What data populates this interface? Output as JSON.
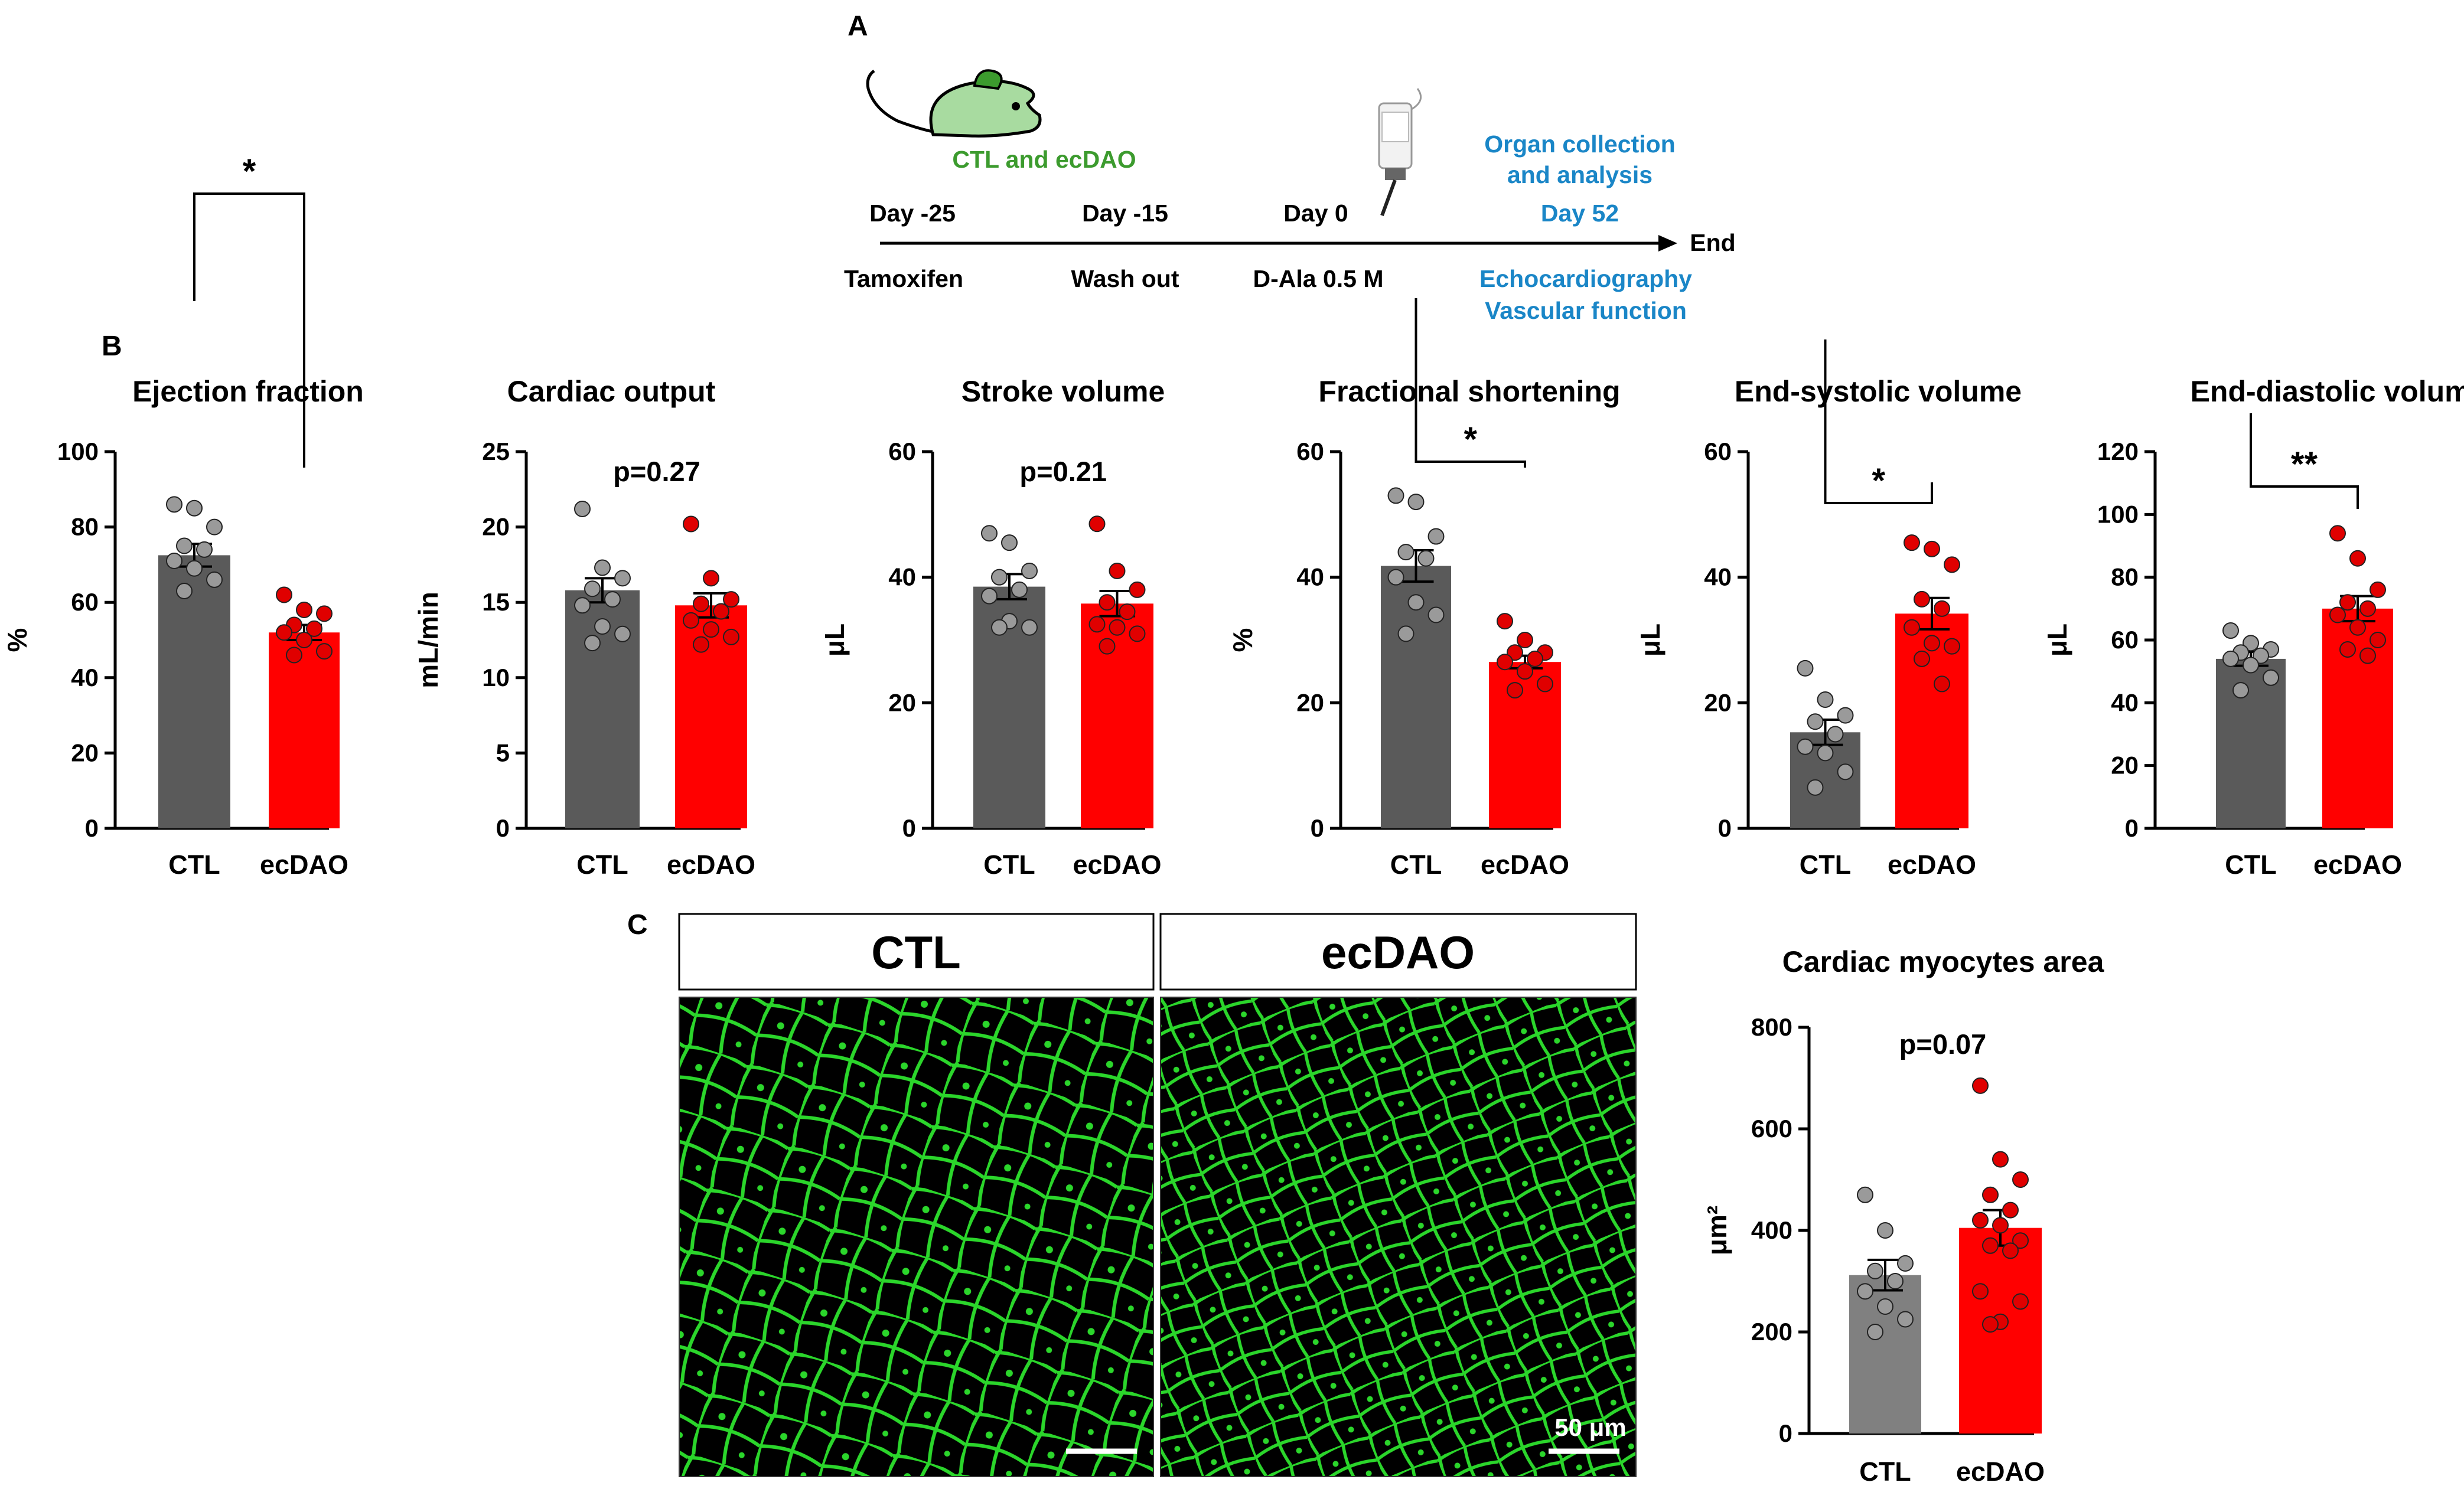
{
  "panel_a": {
    "label": "A",
    "mouse_label": "CTL and ecDAO",
    "events_top": [
      "Day -25",
      "Day -15",
      "Day 0"
    ],
    "events_bottom": [
      "Tamoxifen",
      "Wash out",
      "D-Ala 0.5 M"
    ],
    "end_label": "End",
    "organ_lines": [
      "Organ collection",
      "and analysis"
    ],
    "day52": "Day 52",
    "echo_lines": [
      "Echocardiography",
      "Vascular function"
    ],
    "colors": {
      "blue_text": "#1a86c7",
      "green_text": "#3c9b2e",
      "mouse_fill": "#a8dba0",
      "mouse_ear": "#3c9b2e"
    }
  },
  "panel_b": {
    "label": "B"
  },
  "panel_c": {
    "label": "C",
    "image_titles": [
      "CTL",
      "ecDAO"
    ],
    "scale_bar_label": "50 μm",
    "stain_color": "#2bd62b"
  },
  "colors": {
    "ctl_bar": "#5a5a5a",
    "ecdao_bar": "#ff0000",
    "ctl_bar_c": "#808080",
    "ctl_dot": "#9a9a9a",
    "ecdao_dot": "#e00000"
  },
  "chart_data": [
    {
      "type": "bar",
      "title": "Ejection fraction",
      "ylabel": "%",
      "ylim": [
        0,
        100
      ],
      "yticks": [
        0,
        20,
        40,
        60,
        80,
        100
      ],
      "categories": [
        "CTL",
        "ecDAO"
      ],
      "values": [
        72.5,
        52
      ],
      "sem": [
        3,
        2
      ],
      "points": [
        [
          86,
          85,
          80,
          75,
          74,
          71,
          69,
          66,
          63
        ],
        [
          62,
          58,
          57,
          54,
          53,
          52,
          50,
          47,
          46
        ]
      ],
      "annotation": "*"
    },
    {
      "type": "bar",
      "title": "Cardiac output",
      "ylabel": "mL/min",
      "ylim": [
        0,
        25
      ],
      "yticks": [
        0,
        5,
        10,
        15,
        20,
        25
      ],
      "categories": [
        "CTL",
        "ecDAO"
      ],
      "values": [
        15.8,
        14.8
      ],
      "sem": [
        0.8,
        0.8
      ],
      "points": [
        [
          21.2,
          17.3,
          16.6,
          15.9,
          15.2,
          14.8,
          13.4,
          12.9,
          12.3
        ],
        [
          20.2,
          16.6,
          15.2,
          14.9,
          14.4,
          13.8,
          13.2,
          12.7,
          12.2
        ]
      ],
      "annotation": "p=0.27"
    },
    {
      "type": "bar",
      "title": "Stroke volume",
      "ylabel": "μL",
      "ylim": [
        0,
        60
      ],
      "yticks": [
        0,
        20,
        40,
        60
      ],
      "categories": [
        "CTL",
        "ecDAO"
      ],
      "values": [
        38.5,
        35.8
      ],
      "sem": [
        2,
        2
      ],
      "points": [
        [
          47,
          45.5,
          41,
          40,
          38,
          37,
          33,
          32,
          32
        ],
        [
          48.5,
          41,
          38,
          36,
          34.5,
          32.5,
          32,
          31,
          29
        ]
      ],
      "annotation": "p=0.21"
    },
    {
      "type": "bar",
      "title": "Fractional shortening",
      "ylabel": "%",
      "ylim": [
        0,
        60
      ],
      "yticks": [
        0,
        20,
        40,
        60
      ],
      "categories": [
        "CTL",
        "ecDAO"
      ],
      "values": [
        41.8,
        26.5
      ],
      "sem": [
        2.5,
        1
      ],
      "points": [
        [
          53,
          52,
          46.5,
          44,
          43,
          40,
          36,
          34,
          31
        ],
        [
          33,
          30,
          28,
          28,
          27,
          26.5,
          25,
          23,
          22
        ]
      ],
      "annotation": "*"
    },
    {
      "type": "bar",
      "title": "End-systolic volume",
      "ylabel": "μL",
      "ylim": [
        0,
        60
      ],
      "yticks": [
        0,
        20,
        40,
        60
      ],
      "categories": [
        "CTL",
        "ecDAO"
      ],
      "values": [
        15.3,
        34.2
      ],
      "sem": [
        2,
        2.5
      ],
      "points": [
        [
          25.5,
          20.5,
          18,
          17,
          15,
          13,
          12,
          9,
          6.5
        ],
        [
          45.5,
          44.5,
          42,
          36.5,
          35,
          32,
          29.5,
          29,
          27,
          23
        ]
      ],
      "annotation": "*"
    },
    {
      "type": "bar",
      "title": "End-diastolic volume",
      "ylabel": "μL",
      "ylim": [
        0,
        120
      ],
      "yticks": [
        0,
        20,
        40,
        60,
        80,
        100,
        120
      ],
      "categories": [
        "CTL",
        "ecDAO"
      ],
      "values": [
        54,
        70
      ],
      "sem": [
        2.2,
        4
      ],
      "points": [
        [
          63,
          59,
          57,
          56,
          55,
          54,
          52,
          48,
          44
        ],
        [
          94,
          86,
          76,
          72,
          70,
          68,
          64,
          60,
          57,
          55
        ]
      ],
      "annotation": "**"
    },
    {
      "type": "bar",
      "title": "Cardiac myocytes area",
      "ylabel": "μm²",
      "ylim": [
        0,
        800
      ],
      "yticks": [
        0,
        200,
        400,
        600,
        800
      ],
      "categories": [
        "CTL",
        "ecDAO"
      ],
      "values": [
        312,
        405
      ],
      "sem": [
        30,
        35
      ],
      "points": [
        [
          470,
          400,
          335,
          320,
          300,
          280,
          250,
          225,
          200
        ],
        [
          685,
          540,
          500,
          470,
          440,
          420,
          410,
          380,
          370,
          360,
          280,
          260,
          220,
          215
        ]
      ],
      "annotation": "p=0.07"
    }
  ]
}
